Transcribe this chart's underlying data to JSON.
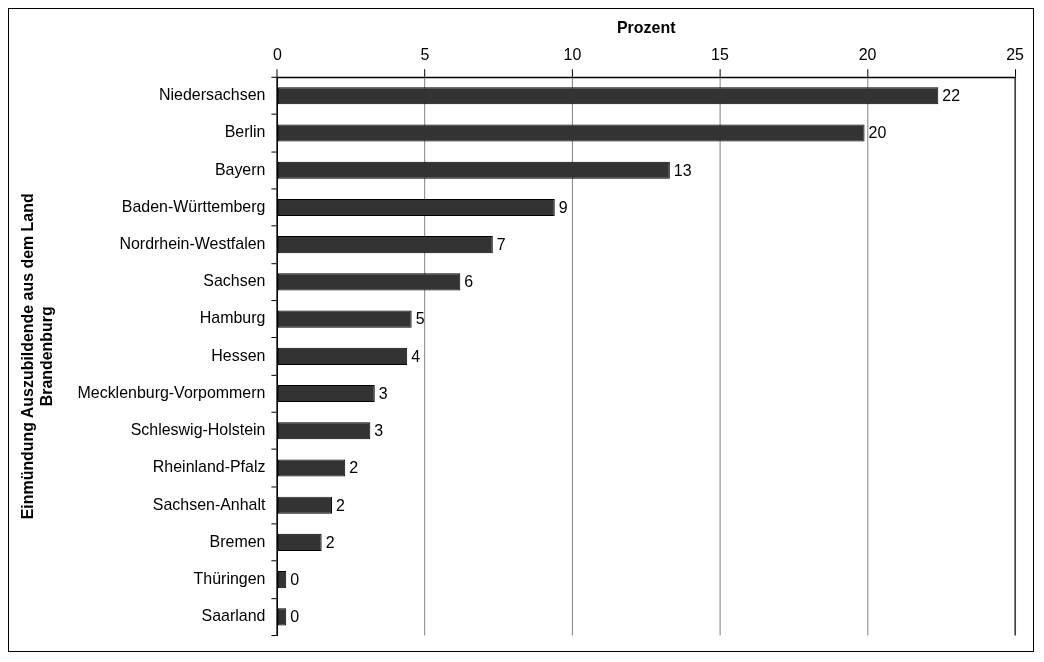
{
  "chart_data": {
    "type": "bar",
    "orientation": "horizontal",
    "xlabel": "Prozent",
    "ylabel": "Einmündung Auszubildende aus dem Land Brandenburg",
    "categories": [
      "Niedersachsen",
      "Berlin",
      "Bayern",
      "Baden-Württemberg",
      "Nordrhein-Westfalen",
      "Sachsen",
      "Hamburg",
      "Hessen",
      "Mecklenburg-Vorpommern",
      "Schleswig-Holstein",
      "Rheinland-Pfalz",
      "Sachsen-Anhalt",
      "Bremen",
      "Thüringen",
      "Saarland"
    ],
    "values": [
      22.4,
      19.9,
      13.3,
      9.4,
      7.3,
      6.2,
      4.55,
      4.4,
      3.3,
      3.15,
      2.3,
      1.85,
      1.5,
      0.3,
      0.3
    ],
    "value_labels": [
      "22",
      "20",
      "13",
      "9",
      "7",
      "6",
      "5",
      "4",
      "3",
      "3",
      "2",
      "2",
      "2",
      "0",
      "0"
    ],
    "color": "#333333",
    "xlim": [
      0,
      25
    ],
    "xticks": [
      0,
      5,
      10,
      15,
      20,
      25
    ],
    "grid": "x"
  }
}
